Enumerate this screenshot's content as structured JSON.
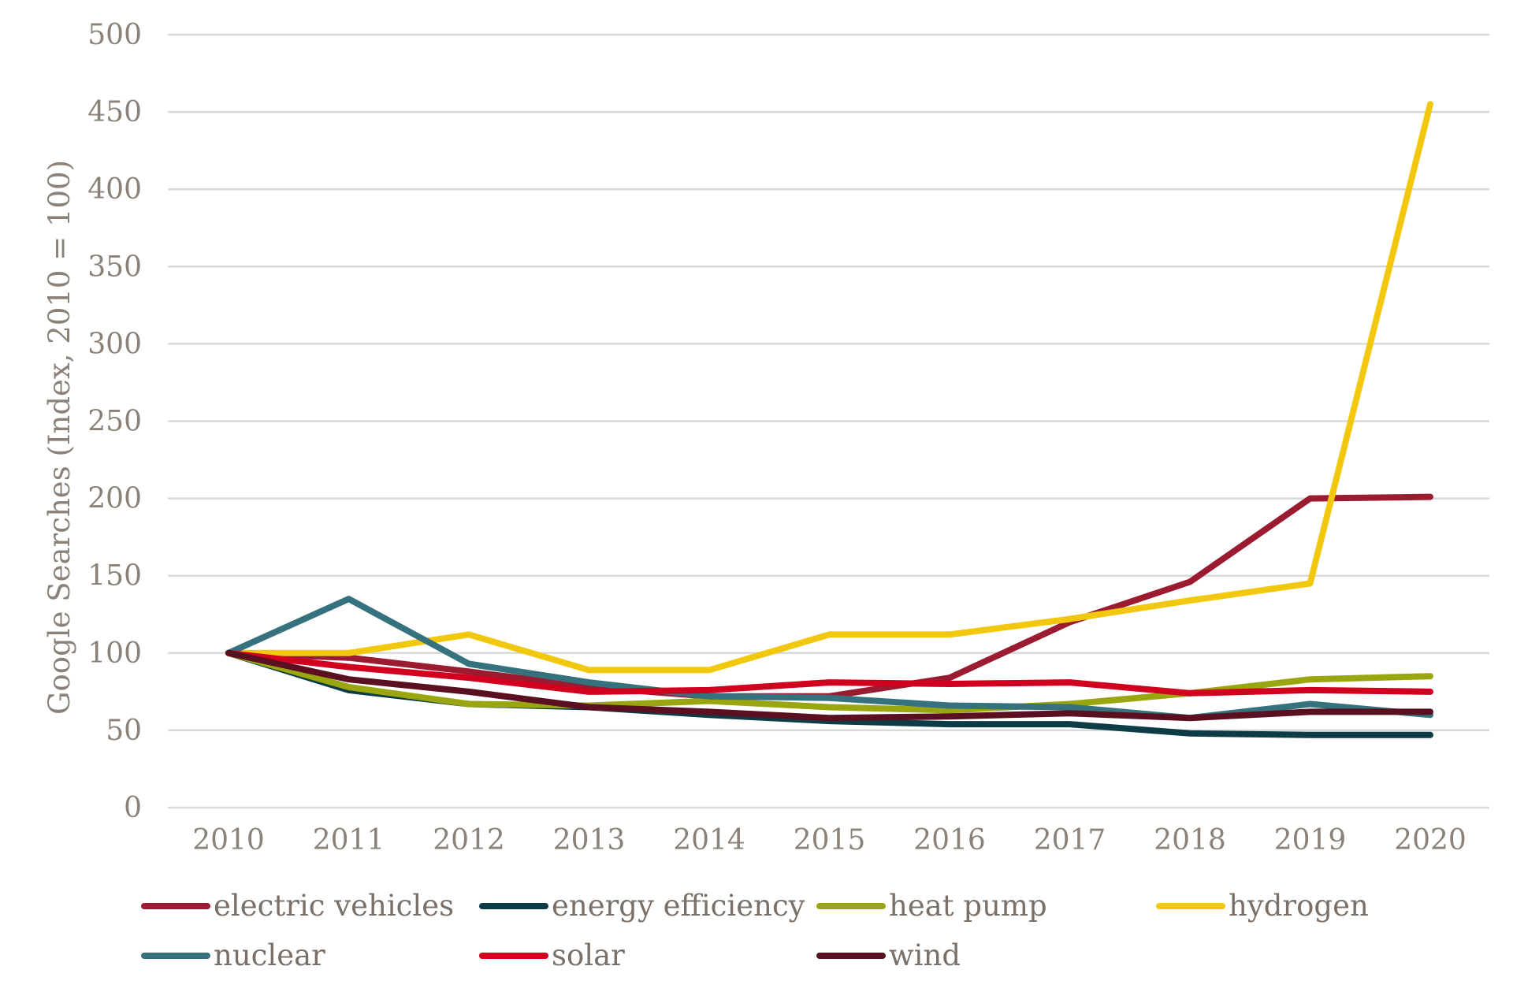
{
  "chart_data": {
    "type": "line",
    "ylabel": "Google Searches (Index, 2010 = 100)",
    "xlabel": "",
    "x": [
      "2010",
      "2011",
      "2012",
      "2013",
      "2014",
      "2015",
      "2016",
      "2017",
      "2018",
      "2019",
      "2020"
    ],
    "ylim": [
      0,
      500
    ],
    "yticks": [
      0,
      50,
      100,
      150,
      200,
      250,
      300,
      350,
      400,
      450,
      500
    ],
    "grid": true,
    "legend_position": "bottom",
    "series": [
      {
        "name": "electric vehicles",
        "color": "#9b1b30",
        "values": [
          100,
          97,
          88,
          78,
          72,
          72,
          84,
          120,
          146,
          200,
          201
        ]
      },
      {
        "name": "energy efficiency",
        "color": "#0d3b46",
        "values": [
          100,
          76,
          67,
          65,
          60,
          56,
          54,
          54,
          48,
          47,
          47
        ]
      },
      {
        "name": "heat pump",
        "color": "#9aa60f",
        "values": [
          100,
          78,
          67,
          66,
          69,
          65,
          63,
          67,
          74,
          83,
          85
        ]
      },
      {
        "name": "hydrogen",
        "color": "#f2c80f",
        "values": [
          100,
          100,
          112,
          89,
          89,
          112,
          112,
          122,
          134,
          145,
          455
        ]
      },
      {
        "name": "nuclear",
        "color": "#35727e",
        "values": [
          100,
          135,
          93,
          81,
          72,
          71,
          66,
          65,
          58,
          67,
          60
        ]
      },
      {
        "name": "solar",
        "color": "#d1001f",
        "values": [
          100,
          91,
          84,
          75,
          76,
          81,
          80,
          81,
          74,
          76,
          75
        ]
      },
      {
        "name": "wind",
        "color": "#5a1020",
        "values": [
          100,
          83,
          75,
          65,
          62,
          58,
          59,
          61,
          58,
          62,
          62
        ]
      }
    ]
  }
}
